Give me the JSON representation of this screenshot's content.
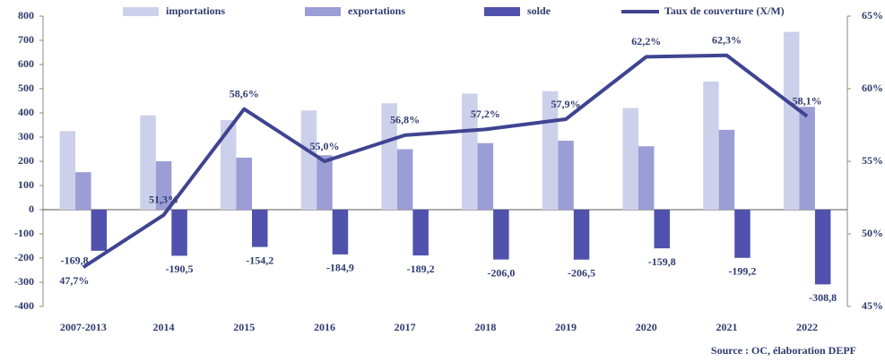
{
  "chart_data": {
    "type": "bar",
    "categories": [
      "2007-2013",
      "2014",
      "2015",
      "2016",
      "2017",
      "2018",
      "2019",
      "2020",
      "2021",
      "2022"
    ],
    "series": [
      {
        "name": "importations",
        "type": "bar",
        "color": "#cdd0ea",
        "values": [
          325,
          390,
          370,
          410,
          440,
          480,
          490,
          420,
          530,
          735
        ]
      },
      {
        "name": "exportations",
        "type": "bar",
        "color": "#9b9dd6",
        "values": [
          155,
          200,
          215,
          225,
          250,
          275,
          285,
          262,
          330,
          425
        ]
      },
      {
        "name": "solde",
        "type": "bar",
        "color": "#5052ad",
        "values": [
          -169.8,
          -190.5,
          -154.2,
          -184.9,
          -189.2,
          -206.0,
          -206.5,
          -159.8,
          -199.2,
          -308.8
        ],
        "value_labels": [
          "-169,8",
          "-190,5",
          "-154,2",
          "-184,9",
          "-189,2",
          "-206,0",
          "-206,5",
          "-159,8",
          "-199,2",
          "-308,8"
        ]
      },
      {
        "name": "Taux de couverture (X/M)",
        "type": "line",
        "axis": "y2",
        "color": "#3f4491",
        "values": [
          47.7,
          51.3,
          58.6,
          55.0,
          56.8,
          57.2,
          57.9,
          62.2,
          62.3,
          58.1
        ],
        "value_labels": [
          "47,7%",
          "51,3%",
          "58,6%",
          "55,0%",
          "56,8%",
          "57,2%",
          "57,9%",
          "62,2%",
          "62,3%",
          "58,1%"
        ]
      }
    ],
    "ylim": [
      -400,
      800
    ],
    "yticks": [
      -400,
      -300,
      -200,
      -100,
      0,
      100,
      200,
      300,
      400,
      500,
      600,
      700,
      800
    ],
    "y2lim": [
      45,
      65
    ],
    "y2ticks": [
      {
        "value": 45,
        "label": "45%"
      },
      {
        "value": 50,
        "label": "50%"
      },
      {
        "value": 55,
        "label": "55%"
      },
      {
        "value": 60,
        "label": "60%"
      },
      {
        "value": 65,
        "label": "65%"
      }
    ],
    "legend": "top",
    "source": "Source : OC, élaboration DEPF"
  }
}
